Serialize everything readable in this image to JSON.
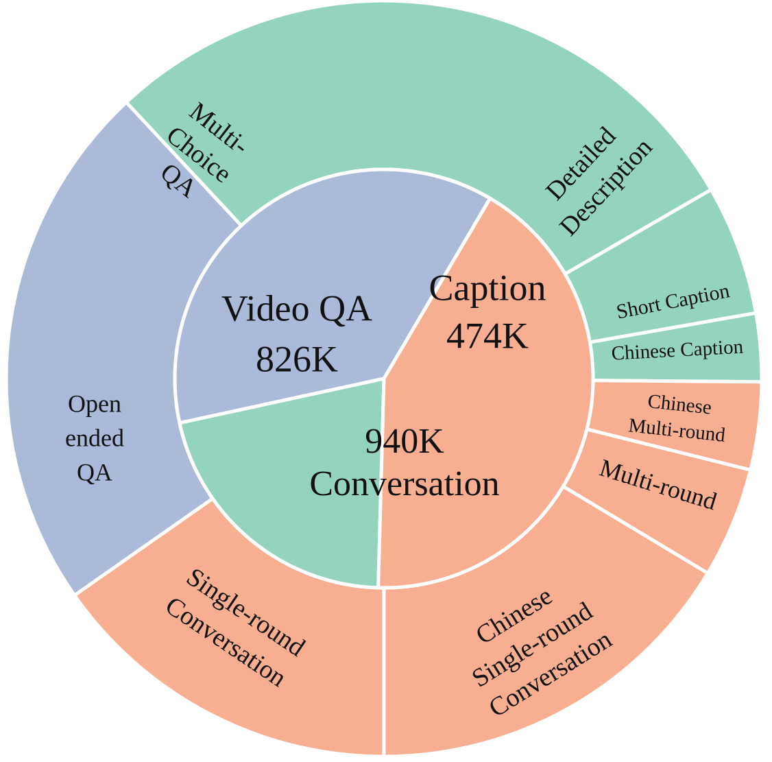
{
  "chart_data": {
    "type": "pie",
    "variant": "sunburst",
    "inner": [
      {
        "name": "Video QA",
        "value_label": "826K",
        "value": 826,
        "color": "#abbad9"
      },
      {
        "name": "Caption",
        "value_label": "474K",
        "value": 474,
        "color": "#94d4bf"
      },
      {
        "name": "Conversation",
        "value_label": "940K",
        "value": 940,
        "color": "#f8ae91"
      }
    ],
    "outer": [
      {
        "parent": "Video QA",
        "label": "Multi- Choice QA",
        "lines": [
          "Multi-",
          "Choice",
          "QA"
        ],
        "start_deg": 133,
        "end_deg": 259
      },
      {
        "parent": "Video QA",
        "label": "Open ended QA",
        "lines": [
          "Open",
          "ended",
          "QA"
        ],
        "start_deg": 259,
        "end_deg": 306
      },
      {
        "parent": "Caption",
        "label": "Detailed Description",
        "lines": [
          "Detailed",
          "Description"
        ],
        "start_deg": 30,
        "end_deg": 133
      },
      {
        "parent": "Caption",
        "label": "Short Caption",
        "lines": [
          "Short Caption"
        ],
        "start_deg": 10,
        "end_deg": 30
      },
      {
        "parent": "Caption",
        "label": "Chinese Caption",
        "lines": [
          "Chinese Caption"
        ],
        "start_deg": -0.5,
        "end_deg": 10
      },
      {
        "parent": "Conversation",
        "label": "Chinese Multi-round",
        "lines": [
          "Chinese",
          "Multi-round"
        ],
        "start_deg": -14,
        "end_deg": -0.5
      },
      {
        "parent": "Conversation",
        "label": "Multi-round",
        "lines": [
          "Multi-round"
        ],
        "start_deg": -31,
        "end_deg": -14
      },
      {
        "parent": "Conversation",
        "label": "Chinese Single-round Conversation",
        "lines": [
          "Chinese",
          "Single-round",
          "Conversation"
        ],
        "start_deg": -90,
        "end_deg": -31
      },
      {
        "parent": "Conversation",
        "label": "Single-round Conversation",
        "lines": [
          "Single-round",
          "Conversation"
        ],
        "start_deg": -145,
        "end_deg": -90
      }
    ]
  }
}
